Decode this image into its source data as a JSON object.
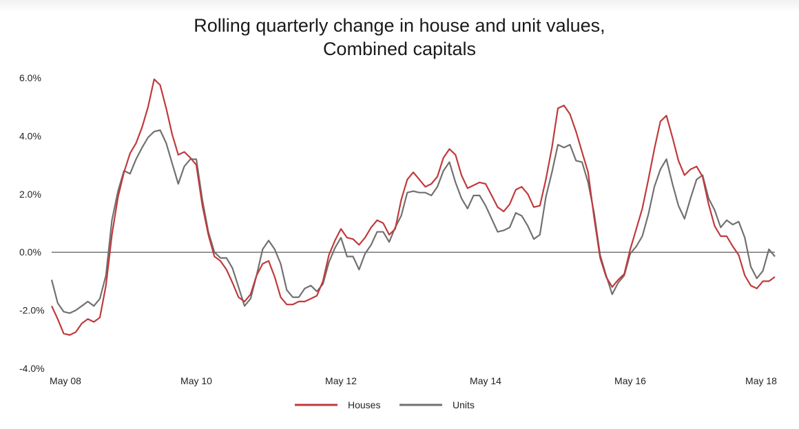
{
  "chart_data": {
    "type": "line",
    "title": "Rolling quarterly change in house and unit values,",
    "subtitle": "Combined capitals",
    "xlabel": "",
    "ylabel": "",
    "y_ticks": [
      "6.0%",
      "4.0%",
      "2.0%",
      "0.0%",
      "-2.0%",
      "-4.0%"
    ],
    "y_tick_values": [
      6,
      4,
      2,
      0,
      -2,
      -4
    ],
    "ylim": [
      -4,
      6
    ],
    "x_ticks": [
      "May 08",
      "May 10",
      "May 12",
      "May 14",
      "May 16",
      "May 18"
    ],
    "x_tick_index": [
      0,
      24,
      48,
      72,
      96,
      120
    ],
    "x_range": [
      "May 08",
      "Jul 18"
    ],
    "zero_line": true,
    "grid": false,
    "legend_position": "bottom-center",
    "colors": {
      "Houses": "#c0393b",
      "Units": "#707070"
    },
    "series": [
      {
        "name": "Houses",
        "values": [
          -1.85,
          -2.3,
          -2.8,
          -2.85,
          -2.75,
          -2.45,
          -2.3,
          -2.4,
          -2.25,
          -1.15,
          0.6,
          1.9,
          2.75,
          3.4,
          3.75,
          4.3,
          5.0,
          5.95,
          5.75,
          4.95,
          4.05,
          3.35,
          3.45,
          3.25,
          3.0,
          1.6,
          0.6,
          -0.15,
          -0.3,
          -0.6,
          -1.05,
          -1.55,
          -1.7,
          -1.45,
          -0.8,
          -0.4,
          -0.3,
          -0.85,
          -1.55,
          -1.8,
          -1.8,
          -1.7,
          -1.7,
          -1.6,
          -1.5,
          -1.0,
          -0.1,
          0.4,
          0.8,
          0.5,
          0.45,
          0.25,
          0.5,
          0.85,
          1.1,
          1.0,
          0.6,
          0.8,
          1.8,
          2.5,
          2.75,
          2.5,
          2.25,
          2.35,
          2.6,
          3.25,
          3.55,
          3.35,
          2.65,
          2.2,
          2.3,
          2.4,
          2.35,
          1.95,
          1.55,
          1.4,
          1.65,
          2.15,
          2.25,
          2.0,
          1.55,
          1.6,
          2.5,
          3.6,
          4.95,
          5.05,
          4.75,
          4.15,
          3.45,
          2.75,
          1.2,
          -0.2,
          -0.85,
          -1.2,
          -0.95,
          -0.75,
          0.1,
          0.8,
          1.5,
          2.5,
          3.55,
          4.5,
          4.7,
          3.95,
          3.15,
          2.65,
          2.85,
          2.95,
          2.6,
          1.65,
          0.9,
          0.55,
          0.55,
          0.2,
          -0.1,
          -0.8,
          -1.15,
          -1.25,
          -1.0,
          -1.0,
          -0.85
        ]
      },
      {
        "name": "Units",
        "values": [
          -0.95,
          -1.75,
          -2.05,
          -2.1,
          -2.0,
          -1.85,
          -1.7,
          -1.85,
          -1.6,
          -0.8,
          1.1,
          2.1,
          2.8,
          2.7,
          3.2,
          3.6,
          3.95,
          4.15,
          4.2,
          3.75,
          3.05,
          2.35,
          2.95,
          3.2,
          3.2,
          1.8,
          0.7,
          0.0,
          -0.2,
          -0.2,
          -0.55,
          -1.2,
          -1.85,
          -1.6,
          -0.8,
          0.1,
          0.4,
          0.1,
          -0.4,
          -1.3,
          -1.55,
          -1.55,
          -1.25,
          -1.15,
          -1.35,
          -1.1,
          -0.35,
          0.15,
          0.5,
          -0.15,
          -0.15,
          -0.6,
          -0.05,
          0.25,
          0.7,
          0.7,
          0.35,
          0.85,
          1.25,
          2.05,
          2.1,
          2.05,
          2.05,
          1.95,
          2.25,
          2.8,
          3.1,
          2.4,
          1.85,
          1.5,
          1.95,
          1.95,
          1.6,
          1.15,
          0.7,
          0.75,
          0.85,
          1.35,
          1.25,
          0.9,
          0.45,
          0.6,
          1.9,
          2.75,
          3.7,
          3.6,
          3.7,
          3.15,
          3.1,
          2.4,
          1.35,
          -0.1,
          -0.8,
          -1.45,
          -1.05,
          -0.8,
          -0.05,
          0.2,
          0.55,
          1.3,
          2.25,
          2.85,
          3.2,
          2.35,
          1.6,
          1.15,
          1.85,
          2.5,
          2.65,
          1.85,
          1.45,
          0.85,
          1.1,
          0.95,
          1.05,
          0.5,
          -0.5,
          -0.9,
          -0.65,
          0.1,
          -0.15
        ]
      }
    ]
  }
}
